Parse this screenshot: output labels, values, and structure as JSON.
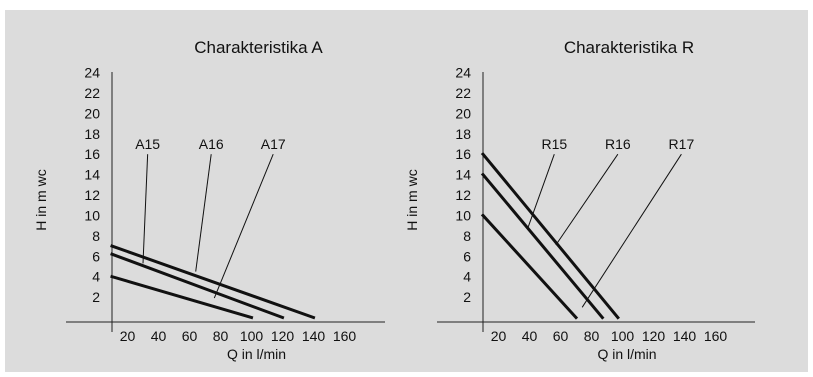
{
  "chart_data": [
    {
      "type": "line",
      "title": "Charakteristika A",
      "xlabel": "Q in l/min",
      "ylabel": "H in m wc",
      "xlim": [
        10,
        170
      ],
      "ylim": [
        -0.3,
        25
      ],
      "x_ticks": [
        20,
        40,
        60,
        80,
        100,
        120,
        140,
        160
      ],
      "y_ticks": [
        2,
        4,
        6,
        8,
        10,
        12,
        14,
        16,
        18,
        20,
        22,
        24
      ],
      "grid": false,
      "series": [
        {
          "name": "A15",
          "x": [
            10,
            100
          ],
          "y": [
            4.0,
            0
          ]
        },
        {
          "name": "A16",
          "x": [
            10,
            120
          ],
          "y": [
            6.2,
            0
          ]
        },
        {
          "name": "A17",
          "x": [
            10,
            140
          ],
          "y": [
            7.0,
            0
          ]
        }
      ],
      "annotations": [
        {
          "text": "A15",
          "label_at": [
            33,
            16.0
          ],
          "points_to": [
            30,
            5.3
          ]
        },
        {
          "text": "A16",
          "label_at": [
            74,
            16.0
          ],
          "points_to": [
            64,
            4.5
          ]
        },
        {
          "text": "A17",
          "label_at": [
            114,
            16.0
          ],
          "points_to": [
            76,
            1.9
          ]
        }
      ]
    },
    {
      "type": "line",
      "title": "Charakteristika R",
      "xlabel": "Q in l/min",
      "ylabel": "H in m wc",
      "xlim": [
        10,
        170
      ],
      "ylim": [
        -0.3,
        25
      ],
      "x_ticks": [
        20,
        40,
        60,
        80,
        100,
        120,
        140,
        160
      ],
      "y_ticks": [
        2,
        4,
        6,
        8,
        10,
        12,
        14,
        16,
        18,
        20,
        22,
        24
      ],
      "grid": false,
      "series": [
        {
          "name": "R15",
          "x": [
            10,
            70
          ],
          "y": [
            10.0,
            0
          ]
        },
        {
          "name": "R16",
          "x": [
            10,
            87
          ],
          "y": [
            14.0,
            0
          ]
        },
        {
          "name": "R17",
          "x": [
            10,
            97
          ],
          "y": [
            16.0,
            0
          ]
        }
      ],
      "annotations": [
        {
          "text": "R15",
          "label_at": [
            56,
            16.0
          ],
          "points_to": [
            39,
            8.8
          ]
        },
        {
          "text": "R16",
          "label_at": [
            97,
            16.0
          ],
          "points_to": [
            57,
            7.1
          ]
        },
        {
          "text": "R17",
          "label_at": [
            138,
            16.0
          ],
          "points_to": [
            74,
            1.0
          ]
        }
      ]
    }
  ]
}
